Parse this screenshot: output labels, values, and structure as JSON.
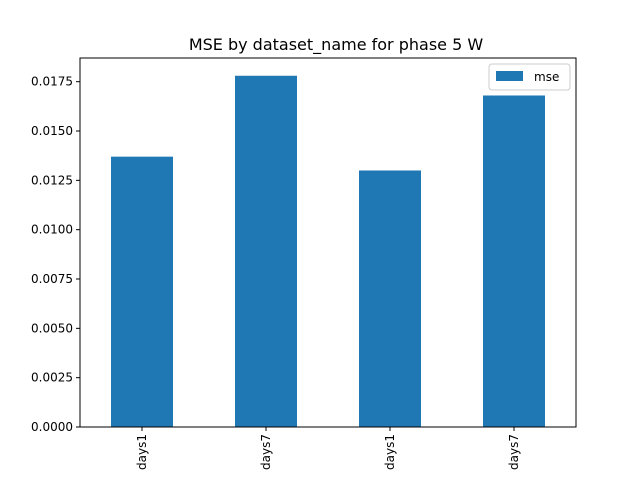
{
  "chart_data": {
    "type": "bar",
    "title": "MSE by dataset_name for phase 5 W",
    "xlabel": "",
    "ylabel": "",
    "categories": [
      "days1",
      "days7",
      "days1",
      "days7"
    ],
    "series": [
      {
        "name": "mse",
        "values": [
          0.0137,
          0.0178,
          0.013,
          0.0168
        ]
      }
    ],
    "ylim": [
      0,
      0.0187
    ],
    "yticks": [
      "0.0000",
      "0.0025",
      "0.0050",
      "0.0075",
      "0.0100",
      "0.0125",
      "0.0150",
      "0.0175"
    ],
    "ytick_values": [
      0,
      0.0025,
      0.005,
      0.0075,
      0.01,
      0.0125,
      0.015,
      0.0175
    ],
    "grid": false,
    "legend_position": "top-right",
    "bar_color": "#1f77b4",
    "xtick_rotation": "vertical"
  }
}
